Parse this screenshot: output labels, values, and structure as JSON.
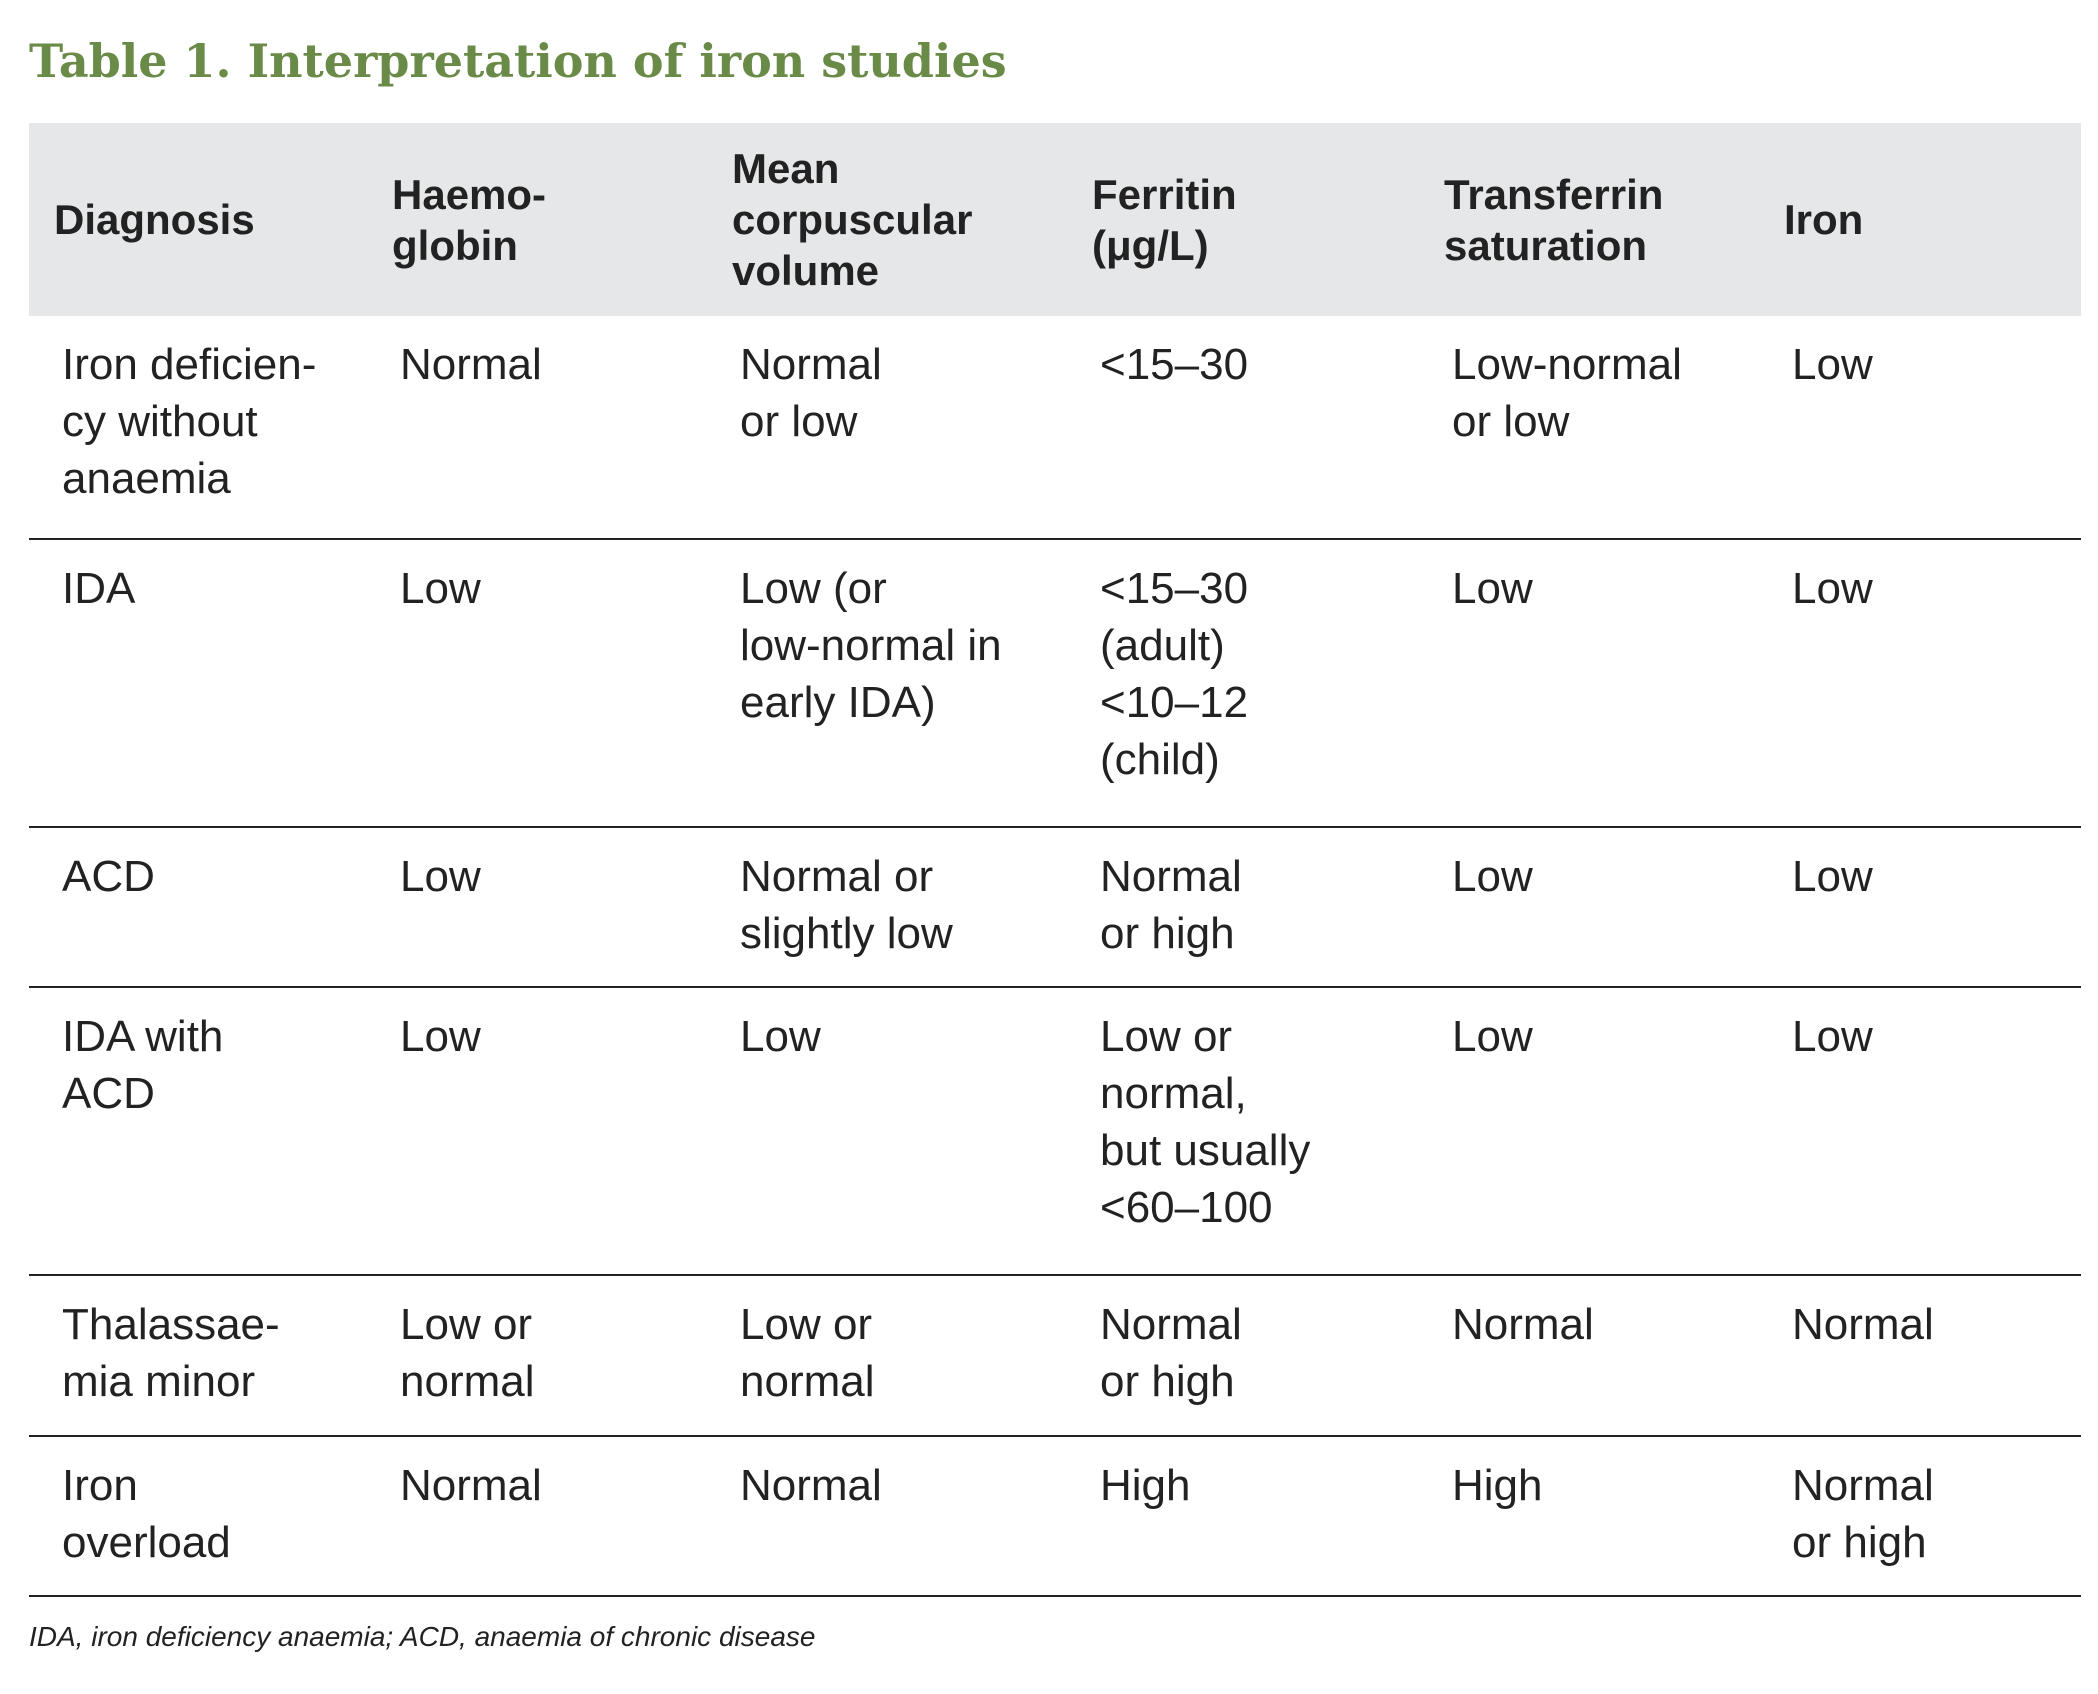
{
  "header": {
    "title": "Table 1. Interpretation of iron studies"
  },
  "table": {
    "columns": [
      [
        "Diagnosis"
      ],
      [
        "Haemo-",
        "globin"
      ],
      [
        "Mean",
        "corpuscular",
        "volume"
      ],
      [
        "Ferritin",
        "(μg/L)"
      ],
      [
        "Transferrin",
        "saturation"
      ],
      [
        "Iron"
      ]
    ],
    "rows": [
      [
        [
          "Iron deficien-",
          "cy without",
          "anaemia"
        ],
        [
          "Normal"
        ],
        [
          "Normal",
          "or low"
        ],
        [
          "<15–30"
        ],
        [
          "Low-normal",
          "or low"
        ],
        [
          "Low"
        ]
      ],
      [
        [
          "IDA"
        ],
        [
          "Low"
        ],
        [
          "Low (or",
          "low-normal in",
          "early IDA)"
        ],
        [
          "<15–30",
          "(adult)",
          "<10–12",
          "(child)"
        ],
        [
          "Low"
        ],
        [
          "Low"
        ]
      ],
      [
        [
          "ACD"
        ],
        [
          "Low"
        ],
        [
          "Normal or",
          "slightly low"
        ],
        [
          "Normal",
          "or high"
        ],
        [
          "Low"
        ],
        [
          "Low"
        ]
      ],
      [
        [
          "IDA with",
          "ACD"
        ],
        [
          "Low"
        ],
        [
          "Low"
        ],
        [
          "Low or",
          "normal,",
          "but usually",
          "<60–100"
        ],
        [
          "Low"
        ],
        [
          "Low"
        ]
      ],
      [
        [
          "Thalassae-",
          "mia minor"
        ],
        [
          "Low or",
          "normal"
        ],
        [
          "Low or",
          "normal"
        ],
        [
          "Normal",
          "or high"
        ],
        [
          "Normal"
        ],
        [
          "Normal"
        ]
      ],
      [
        [
          "Iron",
          "overload"
        ],
        [
          "Normal"
        ],
        [
          "Normal"
        ],
        [
          "High"
        ],
        [
          "High"
        ],
        [
          "Normal",
          "or high"
        ]
      ]
    ]
  },
  "footnote": "IDA, iron deficiency anaemia; ACD, anaemia of chronic disease"
}
